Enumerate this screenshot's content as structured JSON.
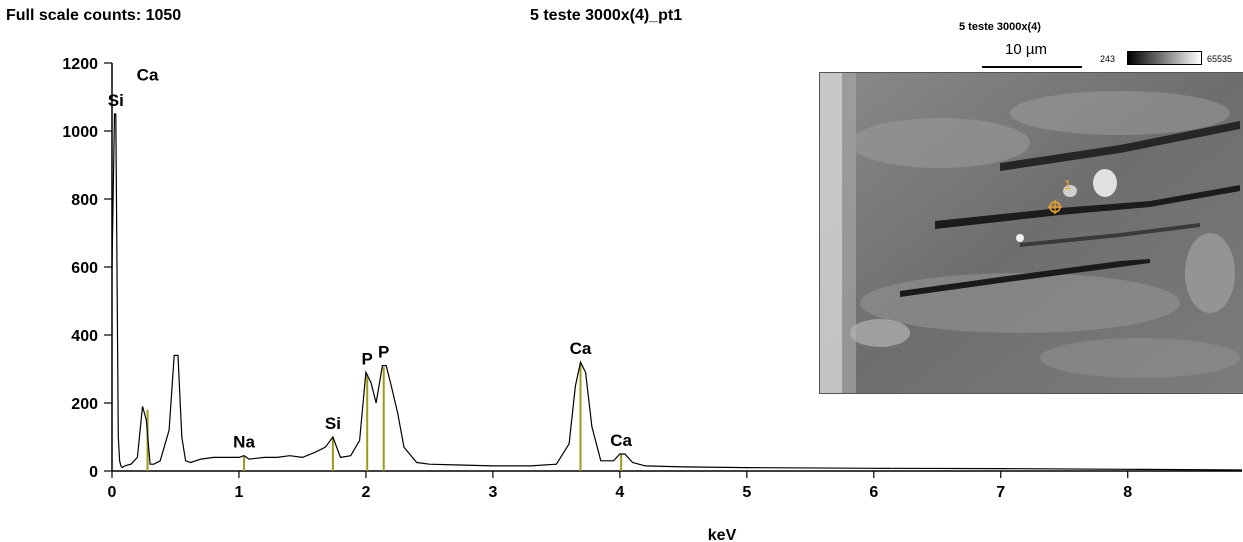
{
  "header": {
    "full_scale": "Full scale counts: 1050",
    "title": "5 teste 3000x(4)_pt1"
  },
  "inset": {
    "title": "5 teste 3000x(4)",
    "scale_label": "10 µm",
    "colorbar_min": "243",
    "colorbar_max": "65535",
    "point_label": "1",
    "point_color": "#f5a623"
  },
  "chart_data": {
    "type": "line",
    "title": "5 teste 3000x(4)_pt1",
    "xlabel": "keV",
    "ylabel": "",
    "xlim": [
      0,
      8.9
    ],
    "ylim": [
      0,
      1200
    ],
    "xticks": [
      0,
      1,
      2,
      3,
      4,
      5,
      6,
      7,
      8
    ],
    "yticks": [
      0,
      200,
      400,
      600,
      800,
      1000,
      1200
    ],
    "grid": false,
    "line_color": "#000000",
    "marker_color": "#9c9a1a",
    "spectrum": {
      "x": [
        0,
        0.02,
        0.03,
        0.05,
        0.06,
        0.07,
        0.08,
        0.1,
        0.15,
        0.2,
        0.24,
        0.27,
        0.3,
        0.33,
        0.38,
        0.45,
        0.49,
        0.52,
        0.55,
        0.58,
        0.62,
        0.7,
        0.8,
        0.9,
        1.0,
        1.04,
        1.08,
        1.2,
        1.3,
        1.4,
        1.5,
        1.6,
        1.68,
        1.74,
        1.8,
        1.88,
        1.95,
        2.0,
        2.04,
        2.08,
        2.13,
        2.16,
        2.2,
        2.25,
        2.3,
        2.4,
        2.5,
        2.7,
        3.0,
        3.3,
        3.5,
        3.6,
        3.65,
        3.69,
        3.73,
        3.78,
        3.85,
        3.95,
        4.0,
        4.04,
        4.1,
        4.2,
        4.5,
        5.0,
        6.0,
        7.0,
        8.0,
        8.9
      ],
      "y": [
        600,
        1050,
        1050,
        100,
        30,
        15,
        10,
        15,
        20,
        40,
        190,
        150,
        20,
        20,
        30,
        120,
        340,
        340,
        100,
        30,
        25,
        35,
        40,
        40,
        40,
        45,
        35,
        40,
        40,
        45,
        40,
        55,
        70,
        100,
        40,
        45,
        90,
        290,
        260,
        200,
        310,
        310,
        250,
        170,
        70,
        25,
        20,
        18,
        15,
        15,
        20,
        80,
        250,
        320,
        290,
        130,
        30,
        30,
        50,
        50,
        25,
        15,
        12,
        10,
        8,
        7,
        5,
        3
      ]
    },
    "peak_labels": [
      {
        "label": "Si",
        "x": 0.03,
        "y": 1050
      },
      {
        "label": "Ca",
        "x": 0.28,
        "y": 1125
      },
      {
        "label": "Na",
        "x": 1.04,
        "y": 45
      },
      {
        "label": "Si",
        "x": 1.74,
        "y": 100
      },
      {
        "label": "P",
        "x": 2.01,
        "y": 290
      },
      {
        "label": "P",
        "x": 2.14,
        "y": 310
      },
      {
        "label": "Ca",
        "x": 3.69,
        "y": 320
      },
      {
        "label": "Ca",
        "x": 4.01,
        "y": 50
      }
    ],
    "markers": [
      {
        "x": 0.28,
        "y": 180
      },
      {
        "x": 1.04,
        "y": 42
      },
      {
        "x": 1.74,
        "y": 100
      },
      {
        "x": 2.01,
        "y": 285
      },
      {
        "x": 2.14,
        "y": 305
      },
      {
        "x": 3.69,
        "y": 320
      },
      {
        "x": 4.01,
        "y": 50
      }
    ]
  }
}
